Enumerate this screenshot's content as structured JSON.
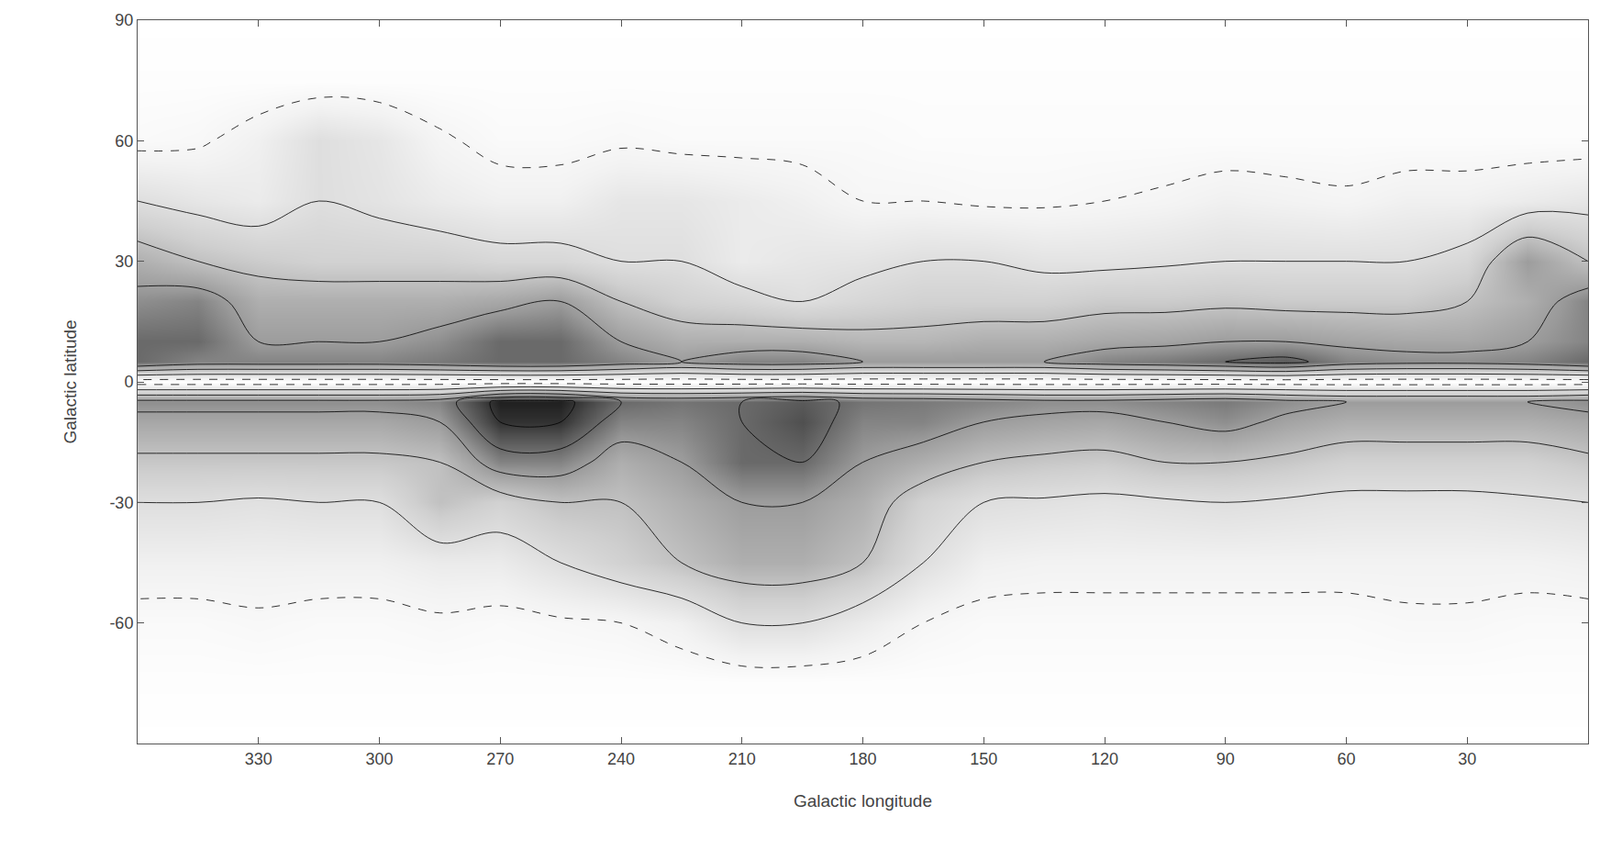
{
  "chart_data": {
    "type": "contour",
    "x_label": "Galactic longitude",
    "y_label": "Galactic latitude",
    "xlim": [
      360,
      0
    ],
    "xticks": [
      330,
      300,
      270,
      240,
      210,
      180,
      150,
      120,
      90,
      60,
      30
    ],
    "ylim": [
      -90,
      90
    ],
    "yticks": [
      -60,
      -30,
      0,
      30,
      60,
      90
    ],
    "grid": false,
    "zlim": [
      0,
      6
    ],
    "levels": [
      0.5,
      1.5,
      2.5,
      3.5,
      4.5,
      5.5
    ],
    "x": [
      360,
      345,
      330,
      315,
      300,
      285,
      270,
      255,
      240,
      225,
      210,
      195,
      180,
      165,
      150,
      135,
      120,
      105,
      90,
      75,
      60,
      45,
      30,
      15,
      0
    ],
    "y": [
      -90,
      -75,
      -60,
      -45,
      -30,
      -20,
      -10,
      -5,
      0,
      5,
      10,
      20,
      30,
      45,
      60,
      75,
      90
    ],
    "z": [
      [
        0,
        0,
        0,
        0,
        0,
        0,
        0,
        0,
        0,
        0,
        0,
        0,
        0,
        0,
        0,
        0,
        0,
        0,
        0,
        0,
        0,
        0,
        0,
        0,
        0
      ],
      [
        0.1,
        0.1,
        0.1,
        0.1,
        0.1,
        0.1,
        0.1,
        0.1,
        0.1,
        0.1,
        0.1,
        0.1,
        0.1,
        0.1,
        0.1,
        0.1,
        0.1,
        0.1,
        0.1,
        0.1,
        0.1,
        0.1,
        0.1,
        0.1,
        0.1
      ],
      [
        0.3,
        0.3,
        0.4,
        0.3,
        0.3,
        0.4,
        0.3,
        0.4,
        0.5,
        0.8,
        1.5,
        1.5,
        1.0,
        0.5,
        0.3,
        0.3,
        0.3,
        0.3,
        0.3,
        0.3,
        0.3,
        0.4,
        0.4,
        0.3,
        0.3
      ],
      [
        0.8,
        0.8,
        0.8,
        0.8,
        0.8,
        1.0,
        1.0,
        1.5,
        2.0,
        2.5,
        3.0,
        3.0,
        2.5,
        1.5,
        0.8,
        0.7,
        0.7,
        0.7,
        0.7,
        0.7,
        0.7,
        0.7,
        0.7,
        0.7,
        0.8
      ],
      [
        1.5,
        1.5,
        1.4,
        1.5,
        1.5,
        2.5,
        2.0,
        2.5,
        2.5,
        3.0,
        3.5,
        3.5,
        3.0,
        2.0,
        1.5,
        1.4,
        1.3,
        1.4,
        1.5,
        1.4,
        1.3,
        1.3,
        1.3,
        1.4,
        1.5
      ],
      [
        2.3,
        2.3,
        2.3,
        2.3,
        2.3,
        2.5,
        4.0,
        4.0,
        3.0,
        3.5,
        4.5,
        4.5,
        3.5,
        3.0,
        2.5,
        2.3,
        2.2,
        2.5,
        2.5,
        2.3,
        2.0,
        2.0,
        2.0,
        2.0,
        2.3
      ],
      [
        3.2,
        3.2,
        3.2,
        3.2,
        3.2,
        3.5,
        5.5,
        5.5,
        4.0,
        4.0,
        4.5,
        5.0,
        4.0,
        4.0,
        3.5,
        3.3,
        3.2,
        3.5,
        3.8,
        3.3,
        3.0,
        3.0,
        3.0,
        3.0,
        3.2
      ],
      [
        3.8,
        3.8,
        3.8,
        3.8,
        3.8,
        4.0,
        5.8,
        5.8,
        4.5,
        4.3,
        4.5,
        4.8,
        4.3,
        4.2,
        4.0,
        3.8,
        3.8,
        4.0,
        4.2,
        3.8,
        3.5,
        3.5,
        3.5,
        3.5,
        3.8
      ],
      [
        0,
        0,
        0,
        0,
        0,
        0,
        0,
        0,
        0,
        0,
        0,
        0,
        0,
        0,
        0,
        0,
        0,
        0,
        0,
        0,
        0,
        0,
        0,
        0,
        0
      ],
      [
        4.5,
        4.0,
        4.0,
        4.0,
        4.0,
        4.2,
        4.5,
        4.5,
        4.0,
        3.5,
        4.0,
        4.0,
        3.5,
        3.5,
        3.5,
        3.5,
        4.0,
        4.2,
        4.5,
        4.8,
        4.0,
        3.8,
        3.8,
        4.0,
        4.5
      ],
      [
        4.5,
        4.5,
        3.5,
        3.5,
        3.5,
        3.8,
        4.5,
        4.5,
        3.5,
        3.0,
        3.0,
        3.0,
        2.8,
        2.8,
        3.0,
        3.0,
        3.2,
        3.3,
        3.5,
        3.5,
        3.3,
        3.2,
        3.2,
        3.5,
        4.0
      ],
      [
        3.8,
        4.0,
        3.0,
        3.0,
        3.0,
        3.0,
        3.2,
        3.5,
        2.5,
        2.0,
        1.8,
        1.5,
        1.8,
        2.0,
        2.0,
        2.0,
        2.2,
        2.2,
        2.3,
        2.2,
        2.2,
        2.2,
        2.5,
        3.0,
        4.0
      ],
      [
        3.0,
        2.5,
        2.2,
        2.0,
        2.0,
        2.0,
        1.8,
        1.8,
        1.5,
        1.5,
        1.0,
        1.2,
        1.3,
        1.5,
        1.5,
        1.3,
        1.3,
        1.4,
        1.5,
        1.5,
        1.5,
        1.5,
        1.8,
        3.5,
        2.5
      ],
      [
        1.5,
        1.2,
        1.0,
        1.5,
        1.3,
        1.0,
        0.8,
        0.8,
        1.2,
        1.2,
        1.0,
        0.8,
        0.5,
        0.5,
        0.4,
        0.4,
        0.5,
        0.6,
        0.8,
        0.7,
        0.6,
        0.8,
        0.8,
        1.0,
        1.2
      ],
      [
        0.3,
        0.4,
        0.8,
        1.5,
        1.2,
        0.6,
        0.3,
        0.3,
        0.4,
        0.3,
        0.3,
        0.3,
        0.3,
        0.2,
        0.2,
        0.2,
        0.2,
        0.2,
        0.2,
        0.2,
        0.2,
        0.2,
        0.2,
        0.2,
        0.2
      ],
      [
        0.1,
        0.1,
        0.1,
        0.1,
        0.1,
        0.1,
        0.1,
        0.1,
        0.1,
        0.1,
        0.1,
        0.1,
        0.1,
        0.1,
        0.1,
        0.1,
        0.1,
        0.1,
        0.1,
        0.1,
        0.1,
        0.1,
        0.1,
        0.1,
        0.1
      ],
      [
        0,
        0,
        0,
        0,
        0,
        0,
        0,
        0,
        0,
        0,
        0,
        0,
        0,
        0,
        0,
        0,
        0,
        0,
        0,
        0,
        0,
        0,
        0,
        0,
        0
      ]
    ]
  }
}
